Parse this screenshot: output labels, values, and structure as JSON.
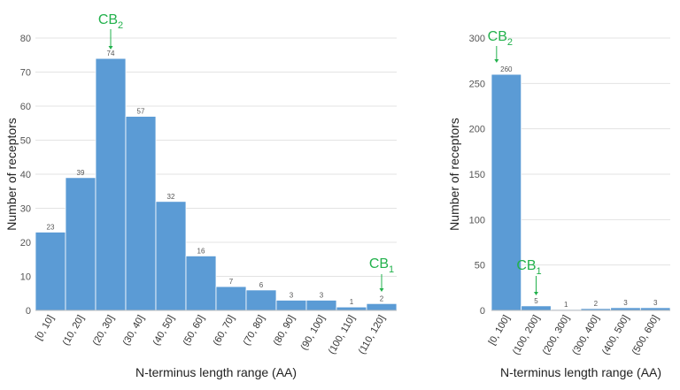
{
  "chart_data": [
    {
      "type": "bar",
      "panel": "left",
      "categories": [
        "[0, 10]",
        "(10, 20]",
        "(20, 30]",
        "(30, 40]",
        "(40, 50]",
        "(50, 60]",
        "(60, 70]",
        "(70, 80]",
        "(80, 90]",
        "(90, 100]",
        "(100, 110]",
        "(110, 120]"
      ],
      "values": [
        23,
        39,
        74,
        57,
        32,
        16,
        7,
        6,
        3,
        3,
        1,
        2
      ],
      "xlabel": "N-terminus length range (AA)",
      "ylabel": "Number of receptors",
      "ylim": [
        0,
        80
      ],
      "yticks": [
        0,
        10,
        20,
        30,
        40,
        50,
        60,
        70,
        80
      ],
      "grid": "horizontal",
      "bar_color": "#5b9bd5",
      "annotations": [
        {
          "label": "CB",
          "subscript": "2",
          "category_index": 2,
          "color": "#22b14c"
        },
        {
          "label": "CB",
          "subscript": "1",
          "category_index": 11,
          "color": "#22b14c"
        }
      ]
    },
    {
      "type": "bar",
      "panel": "right",
      "categories": [
        "[0, 100]",
        "(100, 200]",
        "(200, 300]",
        "(300, 400]",
        "(400, 500]",
        "(500, 600]"
      ],
      "values": [
        260,
        5,
        1,
        2,
        3,
        3
      ],
      "xlabel": "N-terminus length range (AA)",
      "ylabel": "Number of receptors",
      "ylim": [
        0,
        300
      ],
      "yticks": [
        0,
        50,
        100,
        150,
        200,
        250,
        300
      ],
      "grid": "horizontal",
      "bar_color": "#5b9bd5",
      "annotations": [
        {
          "label": "CB",
          "subscript": "2",
          "category_index": 0,
          "color": "#22b14c"
        },
        {
          "label": "CB",
          "subscript": "1",
          "category_index": 1,
          "color": "#22b14c"
        }
      ]
    }
  ]
}
